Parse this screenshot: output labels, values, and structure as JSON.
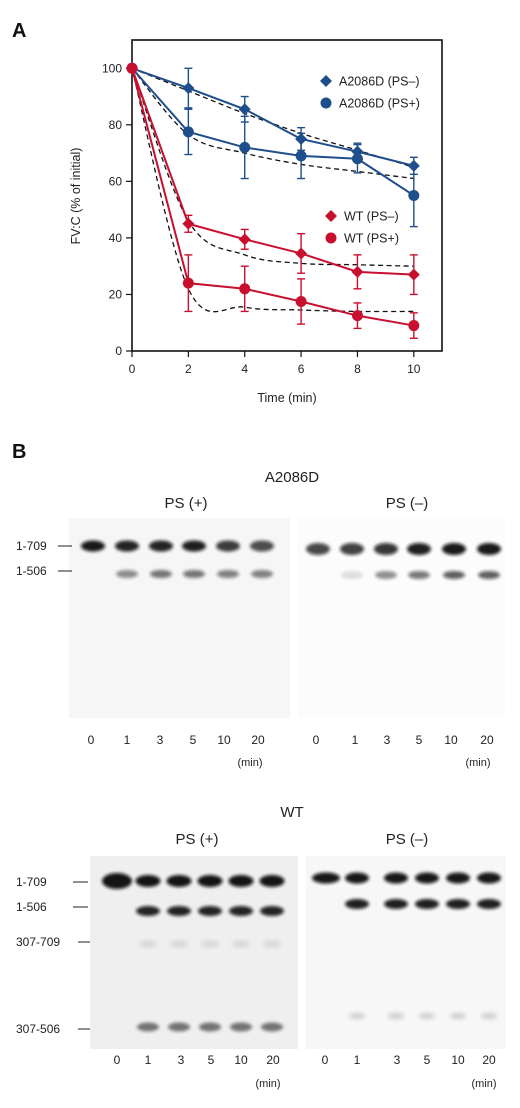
{
  "panel_a": {
    "letter": "A"
  },
  "panel_b": {
    "letter": "B"
  },
  "colors": {
    "blue": "#1f4e8c",
    "red": "#c8102e",
    "fit": "#111111"
  },
  "chart_data": {
    "type": "line",
    "xlabel": "Time (min)",
    "ylabel": "FV:C (% of initial)",
    "xlim": [
      0,
      11
    ],
    "ylim": [
      0,
      110
    ],
    "xticks": [
      0,
      2,
      4,
      6,
      8,
      10
    ],
    "yticks": [
      0,
      20,
      40,
      60,
      80,
      100
    ],
    "x": [
      0,
      2,
      4,
      6,
      8,
      10
    ],
    "legend_position": "right",
    "series": [
      {
        "name": "A2086D (PS–)",
        "marker": "diamond",
        "color": "#1f4e8c",
        "values": [
          100,
          93,
          85.5,
          75,
          70.5,
          65.5
        ],
        "errors": [
          0,
          7,
          4.5,
          4,
          3,
          3
        ],
        "fit": [
          100,
          92,
          84,
          77,
          71,
          65
        ]
      },
      {
        "name": "A2086D (PS+)",
        "marker": "circle",
        "color": "#1f4e8c",
        "values": [
          100,
          77.5,
          72,
          69,
          68,
          55
        ],
        "errors": [
          0,
          8,
          11,
          8,
          5,
          11
        ],
        "fit": [
          100,
          76.5,
          70,
          66,
          63.5,
          61
        ]
      },
      {
        "name": "WT (PS–)",
        "marker": "diamond",
        "color": "#c8102e",
        "values": [
          100,
          45,
          39.5,
          34.5,
          28,
          27
        ],
        "errors": [
          0,
          3,
          3.5,
          7,
          6,
          7
        ],
        "fit": [
          100,
          46,
          34,
          31,
          30.5,
          30
        ]
      },
      {
        "name": "WT (PS+)",
        "marker": "circle",
        "color": "#c8102e",
        "values": [
          100,
          24,
          22,
          17.5,
          12.5,
          9
        ],
        "errors": [
          0,
          10,
          8,
          8,
          4.5,
          4.5
        ],
        "fit": [
          100,
          22,
          15.5,
          14.5,
          14,
          14
        ]
      }
    ]
  },
  "gel_a2086d": {
    "title": "A2086D",
    "cond_plus": "PS (+)",
    "cond_minus": "PS (–)",
    "bands": [
      "1-709",
      "1-506"
    ],
    "lanes": [
      "0",
      "1",
      "3",
      "5",
      "10",
      "20"
    ],
    "unit": "(min)"
  },
  "gel_wt": {
    "title": "WT",
    "cond_plus": "PS (+)",
    "cond_minus": "PS (–)",
    "bands": [
      "1-709",
      "1-506",
      "307-709",
      "307-506"
    ],
    "lanes": [
      "0",
      "1",
      "3",
      "5",
      "10",
      "20"
    ],
    "unit": "(min)"
  }
}
